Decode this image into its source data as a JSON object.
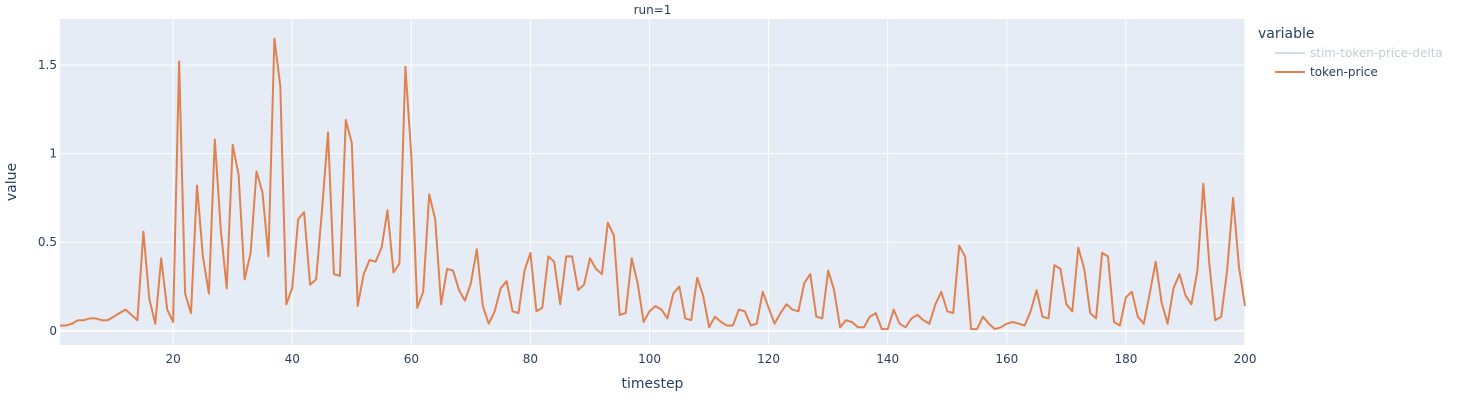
{
  "chart_data": {
    "type": "line",
    "facet_title": "run=1",
    "xlabel": "timestep",
    "ylabel": "value",
    "xlim": [
      1,
      200
    ],
    "ylim": [
      -0.08,
      1.76
    ],
    "xticks": [
      20,
      40,
      60,
      80,
      100,
      120,
      140,
      160,
      180,
      200
    ],
    "yticks": [
      0,
      0.5,
      1,
      1.5
    ],
    "ytick_labels": [
      "0",
      "0.5",
      "1",
      "1.5"
    ],
    "grid": true,
    "plot_background": "#e5ecf6",
    "legend": {
      "title": "variable",
      "placement": "right",
      "entries": [
        {
          "name": "stim-token-price-delta",
          "color": "#aabcd8",
          "visible": false
        },
        {
          "name": "token-price",
          "color": "#e1814f",
          "visible": true
        }
      ]
    },
    "series": [
      {
        "name": "token-price",
        "color": "#e1814f",
        "x": [
          1,
          2,
          3,
          4,
          5,
          6,
          7,
          8,
          9,
          10,
          11,
          12,
          13,
          14,
          15,
          16,
          17,
          18,
          19,
          20,
          21,
          22,
          23,
          24,
          25,
          26,
          27,
          28,
          29,
          30,
          31,
          32,
          33,
          34,
          35,
          36,
          37,
          38,
          39,
          40,
          41,
          42,
          43,
          44,
          45,
          46,
          47,
          48,
          49,
          50,
          51,
          52,
          53,
          54,
          55,
          56,
          57,
          58,
          59,
          60,
          61,
          62,
          63,
          64,
          65,
          66,
          67,
          68,
          69,
          70,
          71,
          72,
          73,
          74,
          75,
          76,
          77,
          78,
          79,
          80,
          81,
          82,
          83,
          84,
          85,
          86,
          87,
          88,
          89,
          90,
          91,
          92,
          93,
          94,
          95,
          96,
          97,
          98,
          99,
          100,
          101,
          102,
          103,
          104,
          105,
          106,
          107,
          108,
          109,
          110,
          111,
          112,
          113,
          114,
          115,
          116,
          117,
          118,
          119,
          120,
          121,
          122,
          123,
          124,
          125,
          126,
          127,
          128,
          129,
          130,
          131,
          132,
          133,
          134,
          135,
          136,
          137,
          138,
          139,
          140,
          141,
          142,
          143,
          144,
          145,
          146,
          147,
          148,
          149,
          150,
          151,
          152,
          153,
          154,
          155,
          156,
          157,
          158,
          159,
          160,
          161,
          162,
          163,
          164,
          165,
          166,
          167,
          168,
          169,
          170,
          171,
          172,
          173,
          174,
          175,
          176,
          177,
          178,
          179,
          180,
          181,
          182,
          183,
          184,
          185,
          186,
          187,
          188,
          189,
          190,
          191,
          192,
          193,
          194,
          195,
          196,
          197,
          198,
          199,
          200
        ],
        "values": [
          0.03,
          0.03,
          0.04,
          0.06,
          0.06,
          0.07,
          0.07,
          0.06,
          0.06,
          0.08,
          0.1,
          0.12,
          0.09,
          0.06,
          0.56,
          0.18,
          0.04,
          0.41,
          0.12,
          0.05,
          1.52,
          0.21,
          0.1,
          0.82,
          0.42,
          0.21,
          1.08,
          0.57,
          0.24,
          1.05,
          0.88,
          0.29,
          0.44,
          0.9,
          0.78,
          0.42,
          1.65,
          1.38,
          0.15,
          0.24,
          0.63,
          0.67,
          0.26,
          0.29,
          0.68,
          1.12,
          0.32,
          0.31,
          1.19,
          1.06,
          0.14,
          0.32,
          0.4,
          0.39,
          0.47,
          0.68,
          0.33,
          0.38,
          1.49,
          0.99,
          0.13,
          0.22,
          0.77,
          0.63,
          0.15,
          0.35,
          0.34,
          0.23,
          0.17,
          0.27,
          0.46,
          0.14,
          0.04,
          0.11,
          0.24,
          0.28,
          0.11,
          0.1,
          0.34,
          0.44,
          0.11,
          0.13,
          0.42,
          0.39,
          0.15,
          0.42,
          0.42,
          0.23,
          0.26,
          0.41,
          0.35,
          0.32,
          0.61,
          0.54,
          0.09,
          0.1,
          0.41,
          0.27,
          0.05,
          0.11,
          0.14,
          0.12,
          0.07,
          0.21,
          0.25,
          0.07,
          0.06,
          0.3,
          0.2,
          0.02,
          0.08,
          0.05,
          0.03,
          0.03,
          0.12,
          0.11,
          0.03,
          0.04,
          0.22,
          0.13,
          0.04,
          0.1,
          0.15,
          0.12,
          0.11,
          0.27,
          0.32,
          0.08,
          0.07,
          0.34,
          0.23,
          0.02,
          0.06,
          0.05,
          0.02,
          0.02,
          0.08,
          0.1,
          0.01,
          0.01,
          0.12,
          0.04,
          0.02,
          0.07,
          0.09,
          0.06,
          0.04,
          0.15,
          0.22,
          0.11,
          0.1,
          0.48,
          0.42,
          0.01,
          0.01,
          0.08,
          0.04,
          0.01,
          0.02,
          0.04,
          0.05,
          0.04,
          0.03,
          0.11,
          0.23,
          0.08,
          0.07,
          0.37,
          0.35,
          0.15,
          0.11,
          0.47,
          0.35,
          0.1,
          0.07,
          0.44,
          0.42,
          0.05,
          0.03,
          0.19,
          0.22,
          0.08,
          0.04,
          0.21,
          0.39,
          0.16,
          0.04,
          0.24,
          0.32,
          0.2,
          0.15,
          0.34,
          0.83,
          0.38,
          0.06,
          0.08,
          0.34,
          0.75,
          0.36,
          0.14
        ]
      }
    ]
  }
}
